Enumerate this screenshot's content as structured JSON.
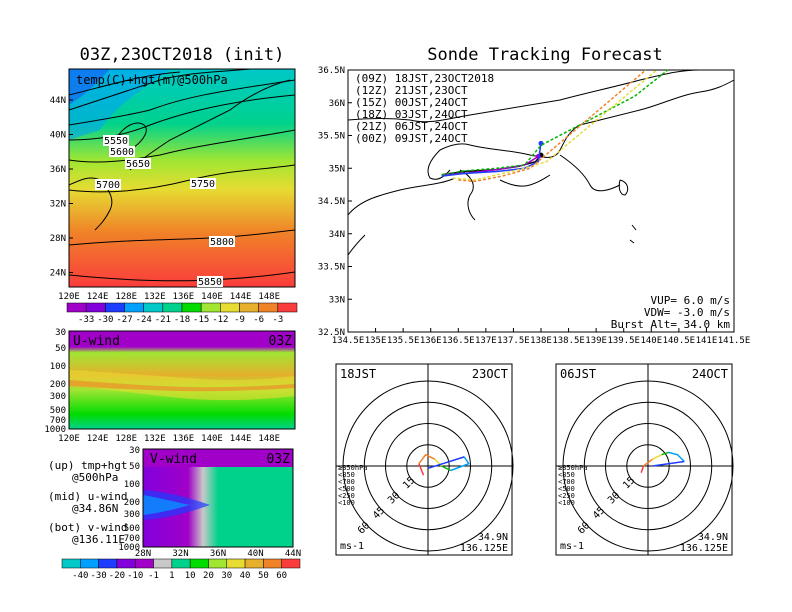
{
  "left_title": "03Z,23OCT2018 (init)",
  "right_title": "Sonde Tracking Forecast",
  "map500": {
    "label": "temp(C)+hgt(m)@500hPa",
    "lat_ticks": [
      "44N",
      "40N",
      "36N",
      "32N",
      "28N",
      "24N"
    ],
    "lon_ticks": [
      "120E",
      "124E",
      "128E",
      "132E",
      "136E",
      "140E",
      "144E",
      "148E"
    ],
    "contour_labels": [
      "5550",
      "5600",
      "5650",
      "5700",
      "5750",
      "5800",
      "5850"
    ],
    "colorbar_ticks": [
      "-33",
      "-30",
      "-27",
      "-24",
      "-21",
      "-18",
      "-15",
      "-12",
      "-9",
      "-6",
      "-3"
    ],
    "colorbar_colors": [
      "#a000c8",
      "#8200dc",
      "#1e3cff",
      "#00a0ff",
      "#00c8c8",
      "#00d28c",
      "#00dc00",
      "#a0e632",
      "#e6dc32",
      "#e6af2d",
      "#f08228",
      "#fa3c3c"
    ]
  },
  "uwind": {
    "title": "U-wind",
    "time": "03Z",
    "p_ticks": [
      "30",
      "50",
      "100",
      "200",
      "300",
      "500",
      "700",
      "1000"
    ],
    "lon_ticks": [
      "120E",
      "124E",
      "128E",
      "132E",
      "136E",
      "140E",
      "144E",
      "148E"
    ]
  },
  "vwind": {
    "title": "V-wind",
    "time": "03Z",
    "p_ticks": [
      "30",
      "50",
      "100",
      "200",
      "300",
      "500",
      "700",
      "1000"
    ],
    "lat_ticks": [
      "28N",
      "32N",
      "36N",
      "40N",
      "44N"
    ]
  },
  "notes": {
    "up1": "(up) tmp+hgt",
    "up2": "@500hPa",
    "mid1": "(mid) u-wind",
    "mid2": "@34.86N",
    "bot1": "(bot) v-wind",
    "bot2": "@136.11E"
  },
  "wind_colorbar": {
    "ticks": [
      "-40",
      "-30",
      "-20",
      "-10",
      "-1",
      "1",
      "10",
      "20",
      "30",
      "40",
      "50",
      "60"
    ],
    "colors": [
      "#00c8c8",
      "#00a0ff",
      "#1e3cff",
      "#8200dc",
      "#a000c8",
      "#c8c8c8",
      "#00d28c",
      "#00dc00",
      "#a0e632",
      "#e6dc32",
      "#e6af2d",
      "#f08228",
      "#fa3c3c"
    ]
  },
  "tracking": {
    "legend": [
      {
        "text": "(09Z)  18JST,23OCT2018",
        "color": "#000000"
      },
      {
        "text": "(12Z)  21JST,23OCT",
        "color": "#a000c8"
      },
      {
        "text": "(15Z)  00JST,24OCT",
        "color": "#1e3cff"
      },
      {
        "text": "(18Z)  03JST,24OCT",
        "color": "#00b400"
      },
      {
        "text": "(21Z)  06JST,24OCT",
        "color": "#e6dc32"
      },
      {
        "text": "(00Z)  09JST,24OCT",
        "color": "#f08228"
      }
    ],
    "lat_ticks": [
      "36.5N",
      "36N",
      "35.5N",
      "35N",
      "34.5N",
      "34N",
      "33.5N",
      "33N",
      "32.5N"
    ],
    "lon_ticks": [
      "134.5E",
      "135E",
      "135.5E",
      "136E",
      "136.5E",
      "137E",
      "137.5E",
      "138E",
      "138.5E",
      "139E",
      "139.5E",
      "140E",
      "140.5E",
      "141E",
      "141.5E"
    ],
    "vup": "VUP=  6.0 m/s",
    "vdw": "VDW= -3.0 m/s",
    "burst": "Burst Alt=  34.0 km"
  },
  "hodo_left": {
    "time": "18JST",
    "date": "23OCT",
    "lat": "34.9N",
    "lon": "136.125E",
    "unit": "ms-1",
    "rings": [
      "15",
      "30",
      "45",
      "60"
    ],
    "levels": [
      "≥850hPa",
      "<850",
      "<700",
      "<500",
      "<250",
      "<100"
    ]
  },
  "hodo_right": {
    "time": "06JST",
    "date": "24OCT",
    "lat": "34.9N",
    "lon": "136.125E",
    "unit": "ms-1",
    "rings": [
      "15",
      "30",
      "45",
      "60"
    ],
    "levels": [
      "≥850hPa",
      "<850",
      "<700",
      "<500",
      "<250",
      "<100"
    ]
  },
  "level_colors": [
    "#fa3c3c",
    "#f08228",
    "#e6dc32",
    "#00b400",
    "#00a0ff",
    "#1e3cff"
  ],
  "chart_data": [
    {
      "type": "heatmap",
      "title": "03Z,23OCT2018 (init)",
      "label": "temp(C)+hgt(m)@500hPa",
      "xlim": [
        120,
        150
      ],
      "ylim": [
        22,
        47
      ],
      "contour_levels": [
        5550,
        5600,
        5650,
        5700,
        5750,
        5800,
        5850
      ]
    },
    {
      "type": "heatmap",
      "title": "U-wind",
      "x": "lon",
      "xlim": [
        120,
        150
      ],
      "ylabel_ticks": [
        30,
        50,
        100,
        200,
        300,
        500,
        700,
        1000
      ]
    },
    {
      "type": "heatmap",
      "title": "V-wind",
      "x": "lat",
      "xlim": [
        28,
        44
      ],
      "ylabel_ticks": [
        30,
        50,
        100,
        200,
        300,
        500,
        700,
        1000
      ]
    },
    {
      "type": "line",
      "title": "Sonde Tracking Forecast",
      "xlim": [
        134.5,
        141.5
      ],
      "ylim": [
        32.5,
        36.5
      ],
      "series": [
        {
          "name": "(09Z)  18JST,23OCT2018",
          "x": [
            136.2,
            136.6,
            137.2,
            137.6,
            137.9,
            138.0
          ],
          "y": [
            34.9,
            34.95,
            34.98,
            35.03,
            35.1,
            35.2
          ]
        },
        {
          "name": "(12Z)  21JST,23OCT",
          "x": [
            136.2,
            136.6,
            137.2,
            137.7,
            137.95
          ],
          "y": [
            34.9,
            34.92,
            34.98,
            35.05,
            35.18
          ]
        },
        {
          "name": "(15Z)  00JST,24OCT",
          "x": [
            136.2,
            136.6,
            137.2,
            137.7,
            137.95,
            138.0
          ],
          "y": [
            34.88,
            34.92,
            34.95,
            35.0,
            35.1,
            35.38
          ]
        },
        {
          "name": "(18Z)  03JST,24OCT",
          "x": [
            136.2,
            136.6,
            137.2,
            137.7,
            138.0,
            139.7,
            140.3
          ],
          "y": [
            34.9,
            34.96,
            35.0,
            35.05,
            35.35,
            36.1,
            36.55
          ]
        },
        {
          "name": "(21Z)  06JST,24OCT",
          "x": [
            136.4,
            136.8,
            137.2,
            137.7,
            138.1,
            140.1
          ],
          "y": [
            34.85,
            34.82,
            34.9,
            35.0,
            35.1,
            36.5
          ]
        },
        {
          "name": "(00Z)  09JST,24OCT",
          "x": [
            136.5,
            136.8,
            137.3,
            137.8,
            139.9
          ],
          "y": [
            34.82,
            34.8,
            34.88,
            35.0,
            36.5
          ]
        }
      ]
    },
    {
      "type": "scatter",
      "title": "18JST 23OCT hodograph",
      "rings": [
        15,
        30,
        45,
        60
      ],
      "series": [
        {
          "name": "≥850hPa",
          "u": [
            -2,
            -4
          ],
          "v": [
            -4,
            1
          ]
        },
        {
          "name": "<850",
          "u": [
            -4,
            -1,
            3
          ],
          "v": [
            1,
            5,
            3
          ]
        },
        {
          "name": "<700",
          "u": [
            3,
            6
          ],
          "v": [
            3,
            0
          ]
        },
        {
          "name": "<500",
          "u": [
            6,
            10
          ],
          "v": [
            0,
            -2
          ]
        },
        {
          "name": "<250",
          "u": [
            10,
            18,
            16
          ],
          "v": [
            -2,
            1,
            4
          ]
        },
        {
          "name": "<100",
          "u": [
            16,
            0
          ],
          "v": [
            4,
            -1
          ]
        }
      ]
    },
    {
      "type": "scatter",
      "title": "06JST 24OCT hodograph",
      "rings": [
        15,
        30,
        45,
        60
      ],
      "series": [
        {
          "name": "≥850hPa",
          "u": [
            -3,
            -2
          ],
          "v": [
            -3,
            0
          ]
        },
        {
          "name": "<850",
          "u": [
            -2,
            2
          ],
          "v": [
            0,
            3
          ]
        },
        {
          "name": "<700",
          "u": [
            2,
            6
          ],
          "v": [
            3,
            5
          ]
        },
        {
          "name": "<500",
          "u": [
            6,
            9
          ],
          "v": [
            5,
            6
          ]
        },
        {
          "name": "<250",
          "u": [
            9,
            13,
            16
          ],
          "v": [
            6,
            5,
            2
          ]
        },
        {
          "name": "<100",
          "u": [
            16,
            2
          ],
          "v": [
            2,
            0
          ]
        }
      ]
    }
  ]
}
